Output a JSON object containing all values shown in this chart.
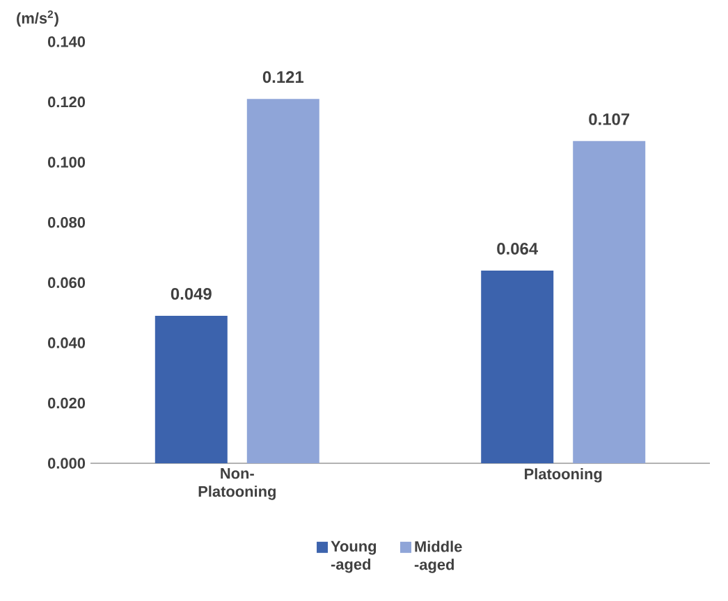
{
  "chart_data": {
    "type": "bar",
    "ylabel": "(m/s$^{2}$)",
    "categories": [
      "Non-Platooning",
      "Platooning"
    ],
    "series": [
      {
        "name": "Young -aged",
        "color": "#3c63ad",
        "values": [
          0.049,
          0.064
        ],
        "value_labels": [
          "0.049",
          "0.064"
        ]
      },
      {
        "name": "Middle -aged",
        "color": "#8fa5d8",
        "values": [
          0.121,
          0.107
        ],
        "value_labels": [
          "0.121",
          "0.107"
        ]
      }
    ],
    "ylim": [
      0,
      0.14
    ],
    "yticks": [
      {
        "value": 0,
        "label": "0.000"
      },
      {
        "value": 0.02,
        "label": "0.020"
      },
      {
        "value": 0.04,
        "label": "0.040"
      },
      {
        "value": 0.06,
        "label": "0.060"
      },
      {
        "value": 0.08,
        "label": "0.080"
      },
      {
        "value": 0.1,
        "label": "0.100"
      },
      {
        "value": 0.12,
        "label": "0.120"
      },
      {
        "value": 0.14,
        "label": "0.140"
      }
    ],
    "legend": "bottom"
  }
}
